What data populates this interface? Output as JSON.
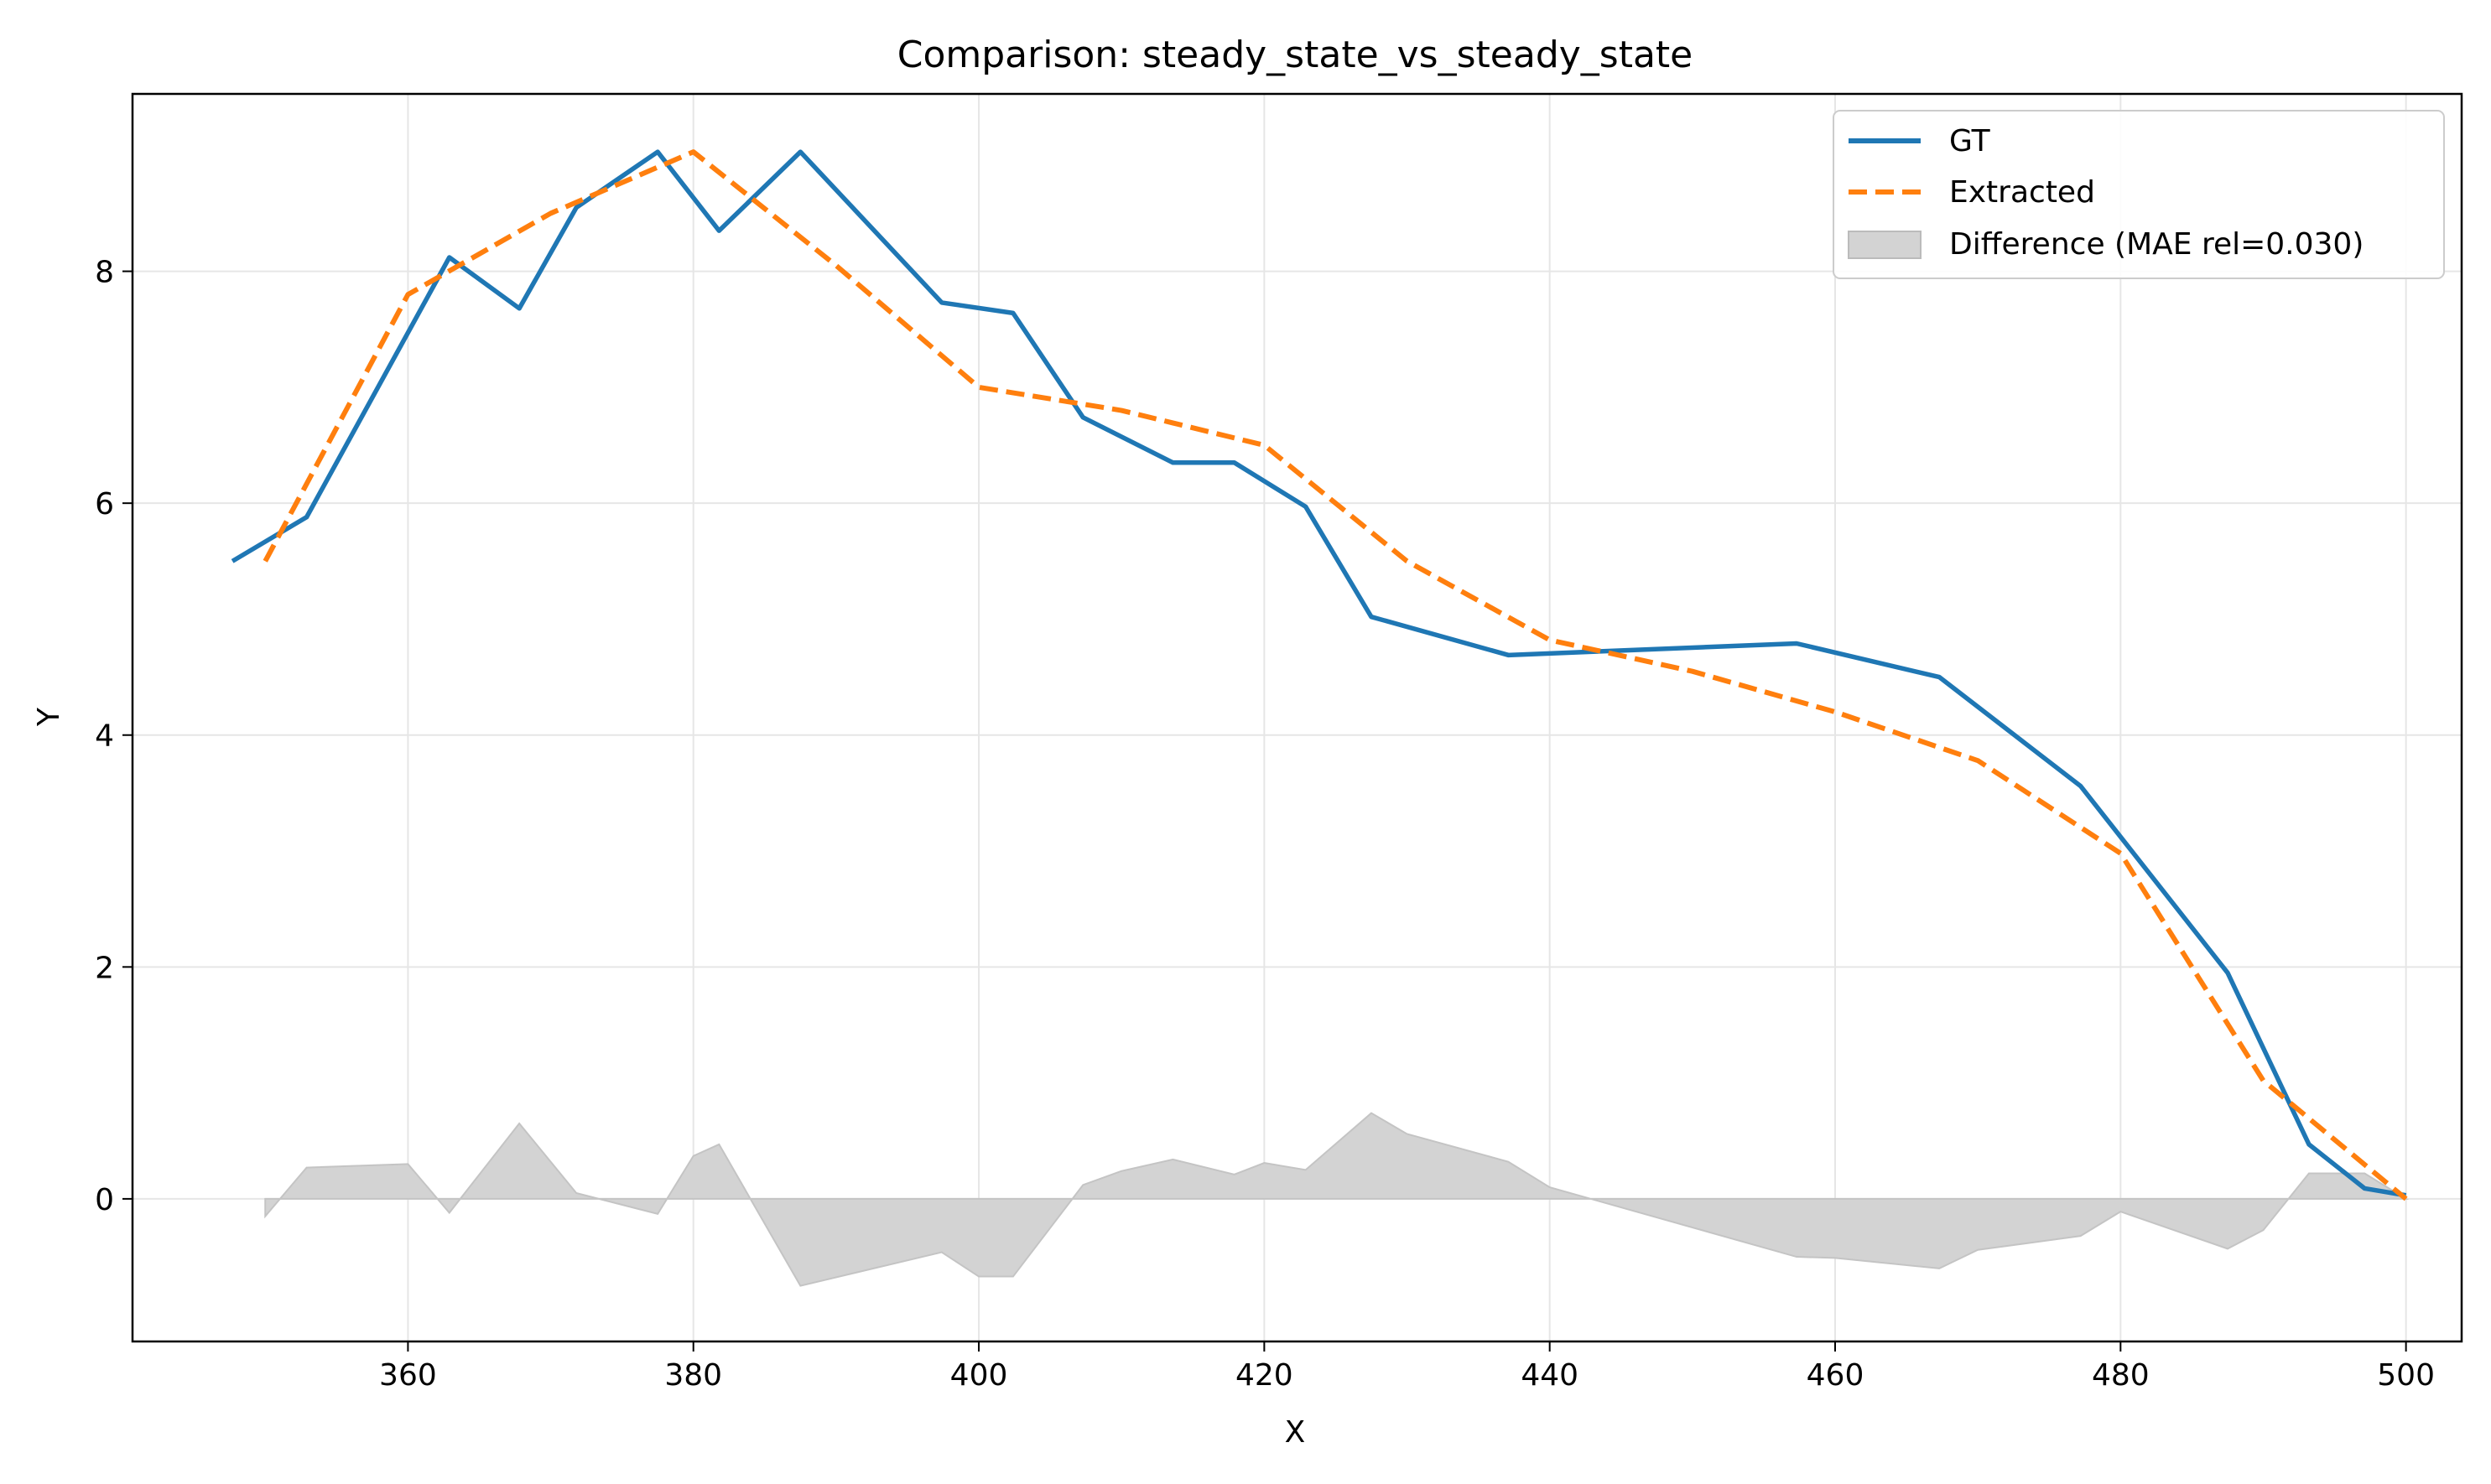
{
  "chart_data": {
    "type": "line",
    "title": "Comparison: steady_state_vs_steady_state",
    "xlabel": "X",
    "ylabel": "Y",
    "xlim": [
      340.7,
      503.9
    ],
    "ylim": [
      -1.23,
      9.53
    ],
    "xticks": [
      360,
      380,
      400,
      420,
      440,
      460,
      480,
      500
    ],
    "yticks": [
      0,
      2,
      4,
      6,
      8
    ],
    "grid": true,
    "legend_position": "top-right",
    "legend": [
      "GT",
      "Extracted",
      "Difference (MAE rel=0.030)"
    ],
    "colors": {
      "gt": "#1f77b4",
      "extracted": "#ff7f0e",
      "difference": "#d3d3d3"
    },
    "series": [
      {
        "name": "GT",
        "style": "solid",
        "x": [
          347.7,
          352.9,
          362.9,
          367.8,
          371.8,
          377.5,
          381.8,
          387.5,
          397.4,
          402.4,
          407.3,
          413.6,
          417.9,
          422.9,
          427.5,
          437.1,
          457.3,
          467.3,
          477.2,
          487.5,
          493.2,
          497.1,
          500.0
        ],
        "y": [
          5.5,
          5.88,
          8.12,
          7.68,
          8.55,
          9.03,
          8.35,
          9.03,
          7.73,
          7.64,
          6.74,
          6.35,
          6.35,
          5.97,
          5.02,
          4.69,
          4.79,
          4.5,
          3.56,
          1.95,
          0.47,
          0.09,
          0.03
        ]
      },
      {
        "name": "Extracted",
        "style": "dashed",
        "x": [
          350.0,
          360.0,
          370.0,
          380.0,
          390.0,
          400.0,
          410.0,
          420.0,
          430.0,
          440.0,
          450.0,
          460.0,
          470.0,
          480.0,
          490.0,
          500.0
        ],
        "y": [
          5.5,
          7.8,
          8.5,
          9.03,
          8.05,
          7.0,
          6.8,
          6.5,
          5.5,
          4.82,
          4.55,
          4.2,
          3.78,
          2.98,
          1.02,
          0.0
        ]
      },
      {
        "name": "Difference (MAE rel=0.030)",
        "style": "fill",
        "x": [
          350.0,
          352.9,
          360.0,
          362.9,
          367.8,
          370.0,
          371.8,
          377.5,
          380.0,
          381.8,
          387.5,
          397.4,
          400.0,
          402.4,
          407.3,
          410.0,
          413.6,
          417.9,
          420.0,
          422.9,
          427.5,
          430.0,
          437.1,
          440.0,
          457.3,
          460.0,
          467.3,
          470.0,
          477.2,
          480.0,
          487.5,
          490.0,
          493.2,
          497.1,
          500.0
        ],
        "y": [
          -0.15,
          0.27,
          0.3,
          -0.12,
          0.65,
          0.32,
          0.05,
          -0.13,
          0.37,
          0.47,
          -0.75,
          -0.46,
          -0.67,
          -0.67,
          0.12,
          0.24,
          0.34,
          0.21,
          0.31,
          0.25,
          0.74,
          0.56,
          0.32,
          0.1,
          -0.5,
          -0.51,
          -0.6,
          -0.44,
          -0.32,
          -0.11,
          -0.43,
          -0.27,
          0.22,
          0.22,
          0.0
        ]
      }
    ]
  }
}
